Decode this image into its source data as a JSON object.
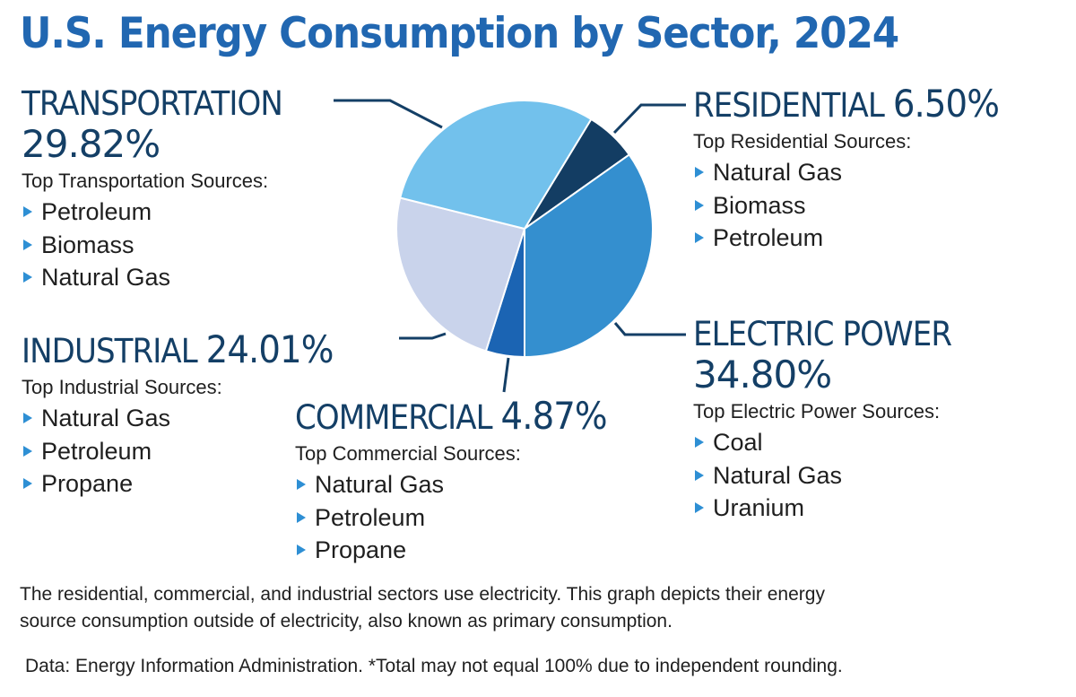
{
  "title": "U.S. Energy Consumption by Sector, 2024",
  "sectors": {
    "transportation": {
      "name": "TRANSPORTATION",
      "percent_label": "29.82%",
      "sources_heading": "Top Transportation Sources:",
      "sources": [
        "Petroleum",
        "Biomass",
        "Natural Gas"
      ]
    },
    "residential": {
      "name": "RESIDENTIAL",
      "percent_label": "6.50%",
      "sources_heading": "Top Residential Sources:",
      "sources": [
        "Natural Gas",
        "Biomass",
        "Petroleum"
      ]
    },
    "industrial": {
      "name": "INDUSTRIAL",
      "percent_label": "24.01%",
      "sources_heading": "Top Industrial Sources:",
      "sources": [
        "Natural Gas",
        "Petroleum",
        "Propane"
      ]
    },
    "commercial": {
      "name": "COMMERCIAL",
      "percent_label": "4.87%",
      "sources_heading": "Top Commercial Sources:",
      "sources": [
        "Natural Gas",
        "Petroleum",
        "Propane"
      ]
    },
    "electric": {
      "name": "ELECTRIC POWER",
      "percent_label": "34.80%",
      "sources_heading": "Top Electric Power Sources:",
      "sources": [
        "Coal",
        "Natural Gas",
        "Uranium"
      ]
    }
  },
  "footnote": {
    "line1": "The residential, commercial, and industrial sectors use electricity. This graph depicts their energy",
    "line2": "source consumption outside of electricity, also known as primary consumption.",
    "source": "Data: Energy Information Administration. *Total may not equal 100% due to independent rounding."
  },
  "colors": {
    "title": "#2167b1",
    "label": "#143f66",
    "bullet": "#2e8fd4"
  },
  "chart_data": {
    "type": "pie",
    "title": "U.S. Energy Consumption by Sector, 2024",
    "unit": "%",
    "slices": [
      {
        "key": "residential",
        "label": "RESIDENTIAL",
        "value": 6.5,
        "color": "#133d63"
      },
      {
        "key": "electric",
        "label": "ELECTRIC POWER",
        "value": 34.8,
        "color": "#348fcf"
      },
      {
        "key": "commercial",
        "label": "COMMERCIAL",
        "value": 4.87,
        "color": "#1b64b3"
      },
      {
        "key": "industrial",
        "label": "INDUSTRIAL",
        "value": 24.01,
        "color": "#c9d3eb"
      },
      {
        "key": "transportation",
        "label": "TRANSPORTATION",
        "value": 29.82,
        "color": "#72c1ec"
      }
    ],
    "legend": "none"
  }
}
